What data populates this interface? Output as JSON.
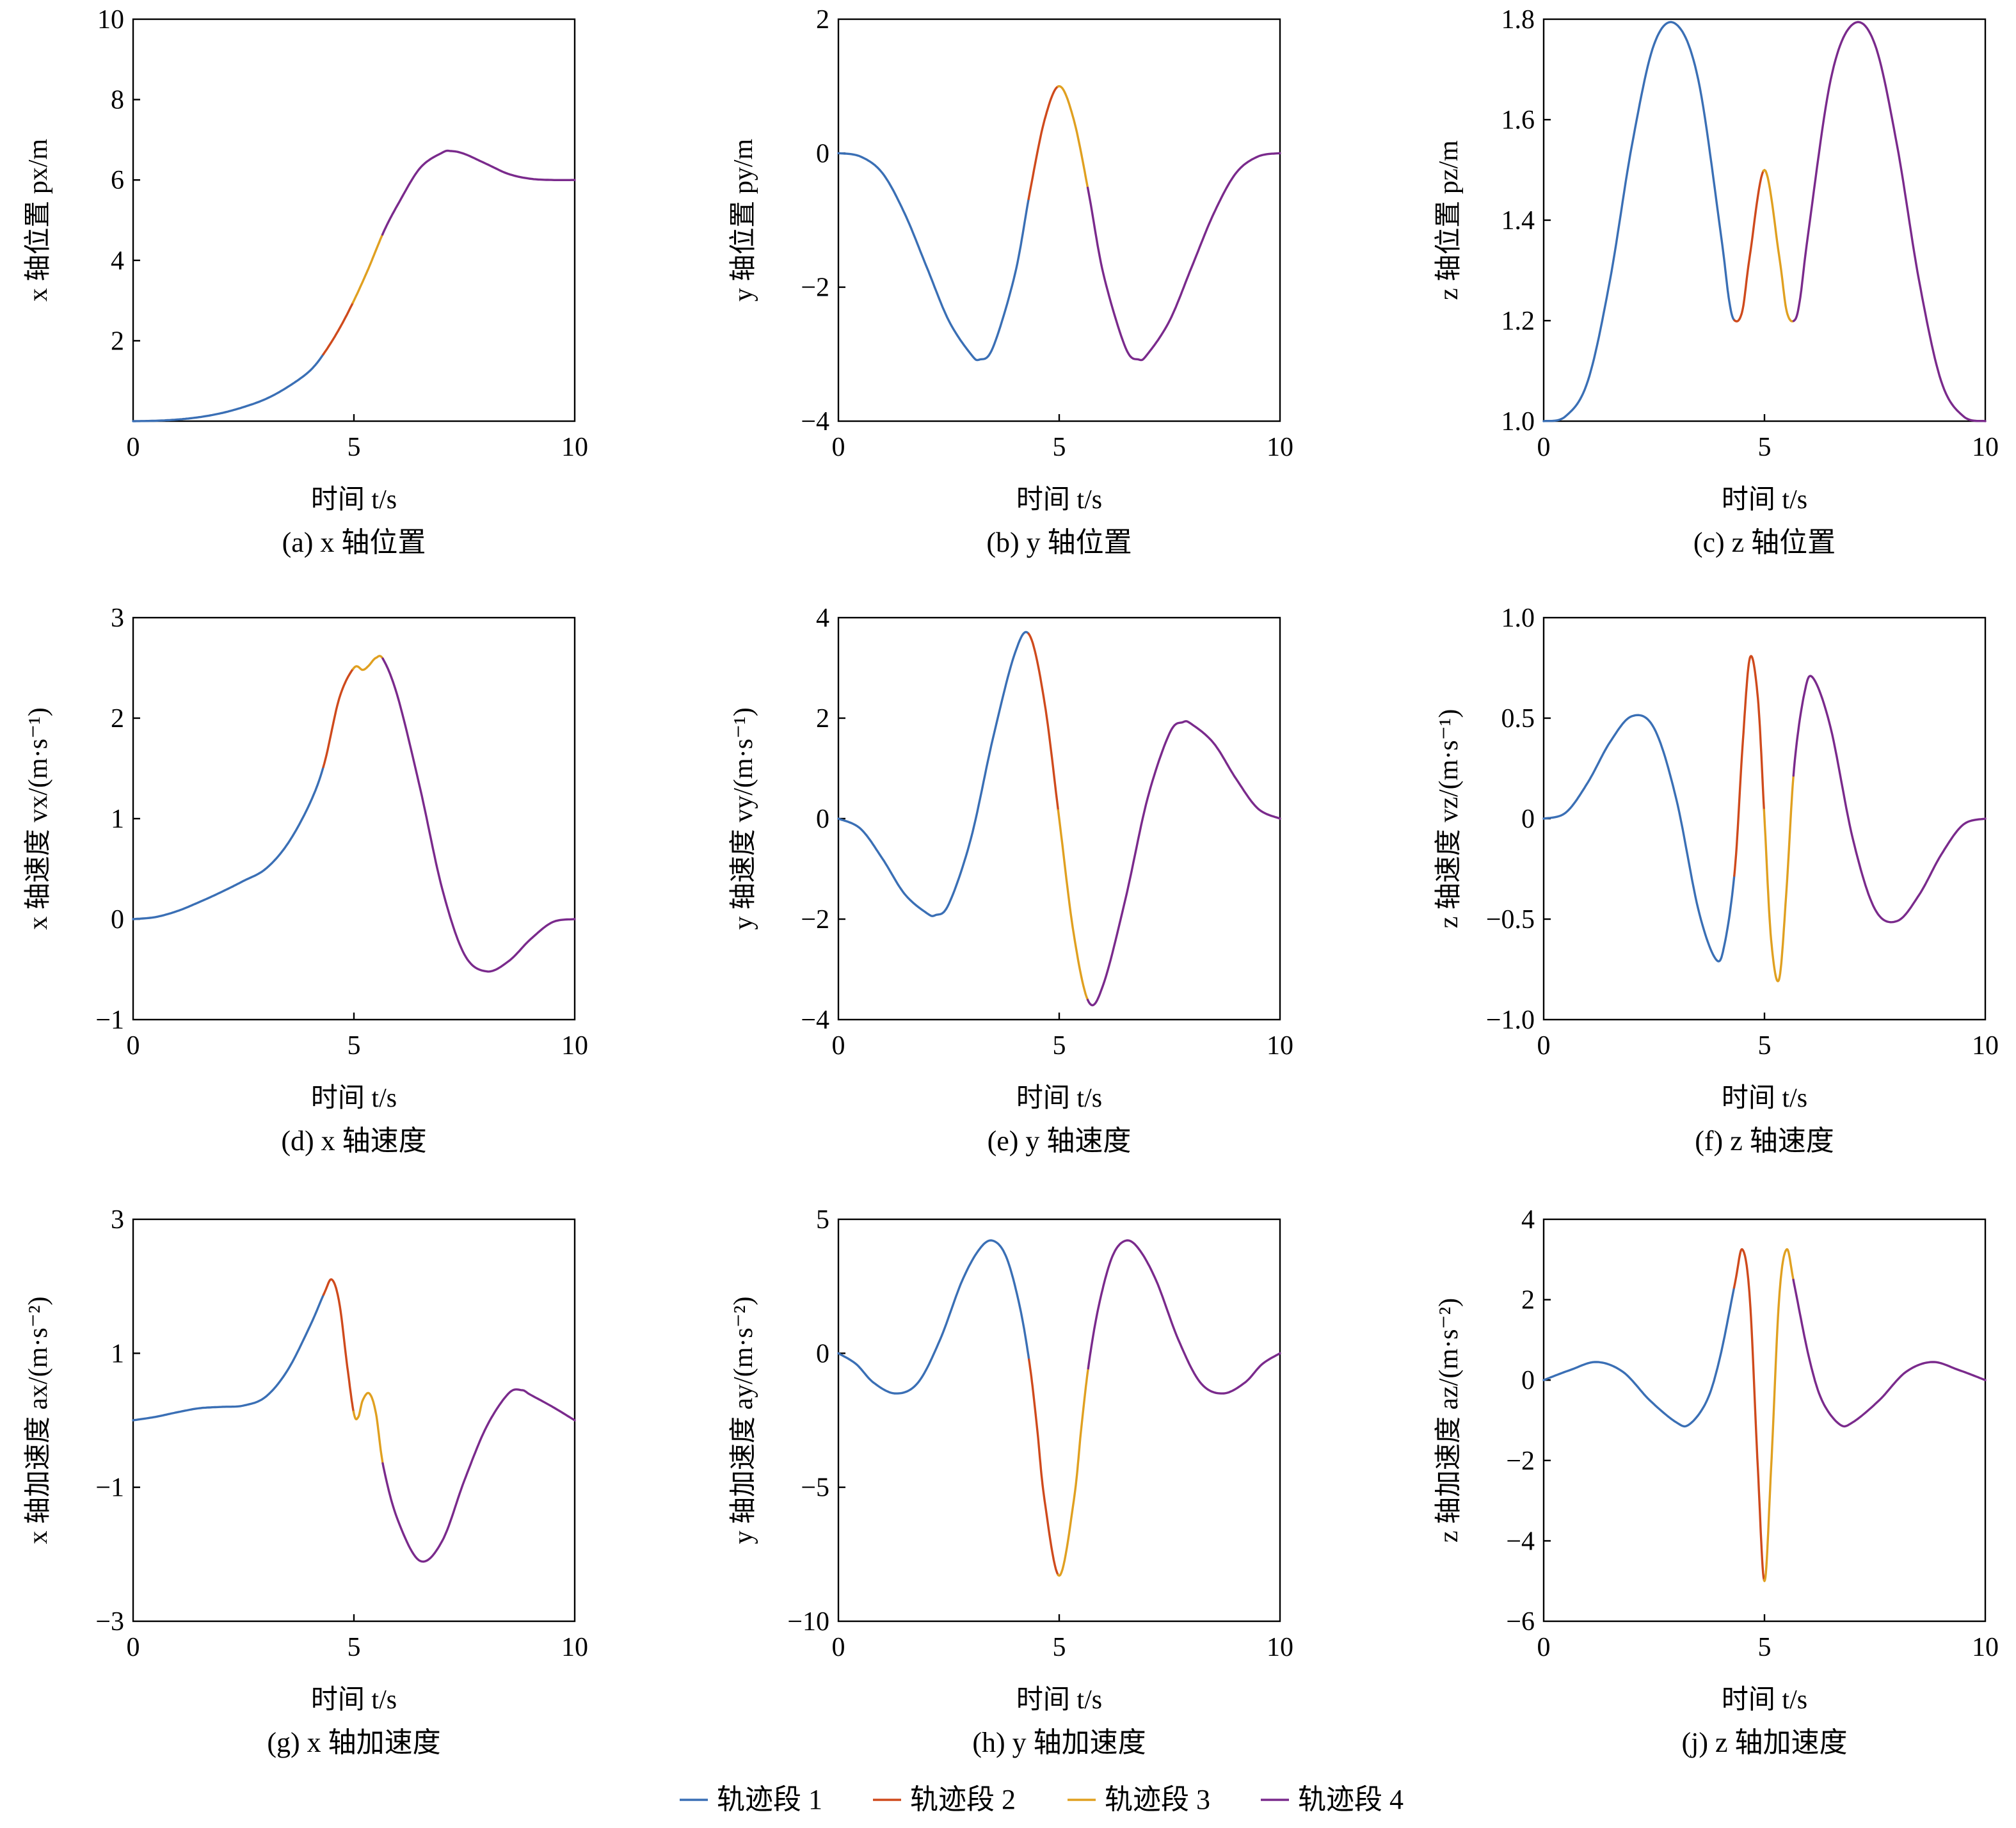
{
  "colors": {
    "segment1": "#3a6fb5",
    "segment2": "#cf4a1c",
    "segment3": "#e0a020",
    "segment4": "#7a2a8c"
  },
  "legend": {
    "placement": "bottom-center",
    "entries": [
      {
        "label": "轨迹段 1",
        "color": "#3a6fb5"
      },
      {
        "label": "轨迹段 2",
        "color": "#cf4a1c"
      },
      {
        "label": "轨迹段 3",
        "color": "#e0a020"
      },
      {
        "label": "轨迹段 4",
        "color": "#7a2a8c"
      }
    ]
  },
  "segment_breaks_s": [
    4.33,
    5.0,
    5.67
  ],
  "chart_data": [
    {
      "id": "a",
      "type": "line",
      "caption": "(a) x 轴位置",
      "xlabel": "时间 t/s",
      "ylabel": "x 轴位置 px/m",
      "xlim": [
        0,
        10
      ],
      "ylim": [
        0,
        10
      ],
      "xticks": [
        "0",
        "5",
        "10"
      ],
      "yticks": [
        "2",
        "4",
        "6",
        "8",
        "10"
      ],
      "x": [
        0,
        0.5,
        1,
        1.5,
        2,
        2.5,
        3,
        3.5,
        4,
        4.33,
        4.67,
        5,
        5.33,
        5.67,
        6,
        6.5,
        7,
        7.2,
        7.5,
        8,
        8.5,
        9,
        9.5,
        10
      ],
      "y": [
        0,
        0.01,
        0.04,
        0.1,
        0.2,
        0.35,
        0.55,
        0.85,
        1.25,
        1.7,
        2.3,
        3.0,
        3.8,
        4.7,
        5.4,
        6.3,
        6.68,
        6.72,
        6.65,
        6.4,
        6.15,
        6.03,
        6.0,
        6.0
      ]
    },
    {
      "id": "b",
      "type": "line",
      "caption": "(b) y 轴位置",
      "xlabel": "时间 t/s",
      "ylabel": "y 轴位置 py/m",
      "xlim": [
        0,
        10
      ],
      "ylim": [
        -4,
        2
      ],
      "xticks": [
        "0",
        "5",
        "10"
      ],
      "yticks": [
        "−4",
        "−2",
        "0",
        "2"
      ],
      "x": [
        0,
        0.5,
        1,
        1.5,
        2,
        2.5,
        3,
        3.2,
        3.5,
        4,
        4.33,
        4.67,
        5,
        5.33,
        5.67,
        6,
        6.5,
        6.8,
        7,
        7.5,
        8,
        8.5,
        9,
        9.5,
        10
      ],
      "y": [
        0,
        -0.05,
        -0.3,
        -0.9,
        -1.7,
        -2.5,
        -3.0,
        -3.08,
        -2.9,
        -1.8,
        -0.6,
        0.5,
        1.0,
        0.5,
        -0.6,
        -1.8,
        -2.9,
        -3.08,
        -3.0,
        -2.5,
        -1.7,
        -0.9,
        -0.3,
        -0.05,
        0
      ]
    },
    {
      "id": "c",
      "type": "line",
      "caption": "(c) z 轴位置",
      "xlabel": "时间 t/s",
      "ylabel": "z 轴位置 pz/m",
      "xlim": [
        0,
        10
      ],
      "ylim": [
        1.0,
        1.8
      ],
      "xticks": [
        "0",
        "5",
        "10"
      ],
      "yticks": [
        "1.0",
        "1.2",
        "1.4",
        "1.6",
        "1.8"
      ],
      "x": [
        0,
        0.5,
        1,
        1.5,
        2,
        2.5,
        3,
        3.5,
        4,
        4.2,
        4.33,
        4.5,
        4.67,
        5,
        5.33,
        5.5,
        5.67,
        5.8,
        6,
        6.5,
        7,
        7.5,
        8,
        8.5,
        9,
        9.5,
        10
      ],
      "y": [
        1.0,
        1.01,
        1.08,
        1.28,
        1.55,
        1.75,
        1.79,
        1.68,
        1.38,
        1.24,
        1.2,
        1.22,
        1.33,
        1.5,
        1.33,
        1.22,
        1.2,
        1.24,
        1.38,
        1.68,
        1.79,
        1.75,
        1.55,
        1.28,
        1.08,
        1.01,
        1.0
      ]
    },
    {
      "id": "d",
      "type": "line",
      "caption": "(d) x 轴速度",
      "xlabel": "时间 t/s",
      "ylabel": "x 轴速度 vx/(m·s⁻¹)",
      "xlim": [
        0,
        10
      ],
      "ylim": [
        -1,
        3
      ],
      "xticks": [
        "0",
        "5",
        "10"
      ],
      "yticks": [
        "−1",
        "0",
        "1",
        "2",
        "3"
      ],
      "x": [
        0,
        0.5,
        1,
        1.5,
        2,
        2.5,
        3,
        3.5,
        4,
        4.33,
        4.67,
        5,
        5.2,
        5.33,
        5.5,
        5.67,
        6,
        6.5,
        7,
        7.5,
        8,
        8.5,
        9,
        9.5,
        10
      ],
      "y": [
        0,
        0.02,
        0.08,
        0.17,
        0.27,
        0.38,
        0.5,
        0.75,
        1.15,
        1.55,
        2.2,
        2.5,
        2.48,
        2.52,
        2.6,
        2.58,
        2.2,
        1.3,
        0.3,
        -0.35,
        -0.52,
        -0.42,
        -0.2,
        -0.03,
        0
      ]
    },
    {
      "id": "e",
      "type": "line",
      "caption": "(e) y 轴速度",
      "xlabel": "时间 t/s",
      "ylabel": "y 轴速度 vy/(m·s⁻¹)",
      "xlim": [
        0,
        10
      ],
      "ylim": [
        -4,
        4
      ],
      "xticks": [
        "0",
        "5",
        "10"
      ],
      "yticks": [
        "−4",
        "−2",
        "0",
        "2",
        "4"
      ],
      "x": [
        0,
        0.5,
        1,
        1.5,
        2,
        2.2,
        2.5,
        3,
        3.5,
        4,
        4.33,
        4.67,
        5,
        5.33,
        5.67,
        6,
        6.5,
        7,
        7.5,
        7.8,
        8,
        8.5,
        9,
        9.5,
        10
      ],
      "y": [
        0,
        -0.2,
        -0.8,
        -1.5,
        -1.88,
        -1.92,
        -1.7,
        -0.4,
        1.6,
        3.3,
        3.65,
        2.3,
        0,
        -2.3,
        -3.65,
        -3.3,
        -1.6,
        0.4,
        1.7,
        1.92,
        1.88,
        1.5,
        0.8,
        0.2,
        0
      ]
    },
    {
      "id": "f",
      "type": "line",
      "caption": "(f) z 轴速度",
      "xlabel": "时间 t/s",
      "ylabel": "z 轴速度 vz/(m·s⁻¹)",
      "xlim": [
        0,
        10
      ],
      "ylim": [
        -1.0,
        1.0
      ],
      "xticks": [
        "0",
        "5",
        "10"
      ],
      "yticks": [
        "−1.0",
        "−0.5",
        "0",
        "0.5",
        "1.0"
      ],
      "x": [
        0,
        0.5,
        1,
        1.5,
        2,
        2.5,
        3,
        3.5,
        3.9,
        4.1,
        4.33,
        4.5,
        4.67,
        4.85,
        5,
        5.15,
        5.33,
        5.5,
        5.67,
        5.9,
        6.1,
        6.5,
        7,
        7.5,
        8,
        8.5,
        9,
        9.5,
        10
      ],
      "y": [
        0,
        0.03,
        0.18,
        0.38,
        0.51,
        0.45,
        0.1,
        -0.45,
        -0.7,
        -0.62,
        -0.25,
        0.35,
        0.8,
        0.6,
        0,
        -0.6,
        -0.8,
        -0.35,
        0.25,
        0.62,
        0.7,
        0.45,
        -0.1,
        -0.45,
        -0.51,
        -0.38,
        -0.18,
        -0.03,
        0
      ]
    },
    {
      "id": "g",
      "type": "line",
      "caption": "(g) x 轴加速度",
      "xlabel": "时间 t/s",
      "ylabel": "x 轴加速度 ax/(m·s⁻²)",
      "xlim": [
        0,
        10
      ],
      "ylim": [
        -3,
        3
      ],
      "xticks": [
        "0",
        "5",
        "10"
      ],
      "yticks": [
        "−3",
        "−1",
        "1",
        "3"
      ],
      "x": [
        0,
        0.5,
        1,
        1.5,
        2,
        2.5,
        3,
        3.5,
        4,
        4.33,
        4.5,
        4.67,
        4.85,
        5,
        5.1,
        5.2,
        5.35,
        5.5,
        5.67,
        6,
        6.5,
        7,
        7.5,
        8,
        8.5,
        8.8,
        9,
        9.5,
        10
      ],
      "y": [
        0,
        0.05,
        0.12,
        0.18,
        0.2,
        0.22,
        0.35,
        0.75,
        1.4,
        1.9,
        2.1,
        1.75,
        0.8,
        0.1,
        0.05,
        0.3,
        0.4,
        0.1,
        -0.7,
        -1.5,
        -2.1,
        -1.8,
        -0.9,
        -0.1,
        0.4,
        0.45,
        0.38,
        0.2,
        0
      ]
    },
    {
      "id": "h",
      "type": "line",
      "caption": "(h) y 轴加速度",
      "xlabel": "时间 t/s",
      "ylabel": "y 轴加速度 ay/(m·s⁻²)",
      "xlim": [
        0,
        10
      ],
      "ylim": [
        -10,
        5
      ],
      "xticks": [
        "0",
        "5",
        "10"
      ],
      "yticks": [
        "−10",
        "−5",
        "0",
        "5"
      ],
      "x": [
        0,
        0.4,
        0.8,
        1.3,
        1.8,
        2.3,
        2.8,
        3.2,
        3.5,
        3.8,
        4.1,
        4.33,
        4.5,
        4.67,
        5,
        5.33,
        5.5,
        5.67,
        5.9,
        6.2,
        6.5,
        6.8,
        7.2,
        7.7,
        8.2,
        8.7,
        9.2,
        9.6,
        10
      ],
      "y": [
        0,
        -0.4,
        -1.1,
        -1.5,
        -1.1,
        0.5,
        2.7,
        3.9,
        4.2,
        3.6,
        1.8,
        -0.4,
        -2.8,
        -5.5,
        -8.3,
        -5.5,
        -2.8,
        -0.4,
        1.8,
        3.6,
        4.2,
        3.9,
        2.7,
        0.5,
        -1.1,
        -1.5,
        -1.1,
        -0.4,
        0
      ]
    },
    {
      "id": "j",
      "type": "line",
      "caption": "(j) z 轴加速度",
      "xlabel": "时间 t/s",
      "ylabel": "z 轴加速度 az/(m·s⁻²)",
      "xlim": [
        0,
        10
      ],
      "ylim": [
        -6,
        4
      ],
      "xticks": [
        "0",
        "5",
        "10"
      ],
      "yticks": [
        "−6",
        "−4",
        "−2",
        "0",
        "2",
        "4"
      ],
      "x": [
        0,
        0.6,
        1.2,
        1.8,
        2.4,
        3.0,
        3.3,
        3.7,
        4.0,
        4.33,
        4.5,
        4.67,
        4.85,
        5,
        5.15,
        5.33,
        5.5,
        5.67,
        6.0,
        6.3,
        6.7,
        7.0,
        7.6,
        8.2,
        8.8,
        9.4,
        10
      ],
      "y": [
        0,
        0.25,
        0.45,
        0.2,
        -0.5,
        -1.05,
        -1.1,
        -0.5,
        0.6,
        2.4,
        3.25,
        2.0,
        -2.2,
        -5.0,
        -2.2,
        2.0,
        3.25,
        2.4,
        0.6,
        -0.5,
        -1.1,
        -1.05,
        -0.5,
        0.2,
        0.45,
        0.25,
        0
      ]
    }
  ]
}
